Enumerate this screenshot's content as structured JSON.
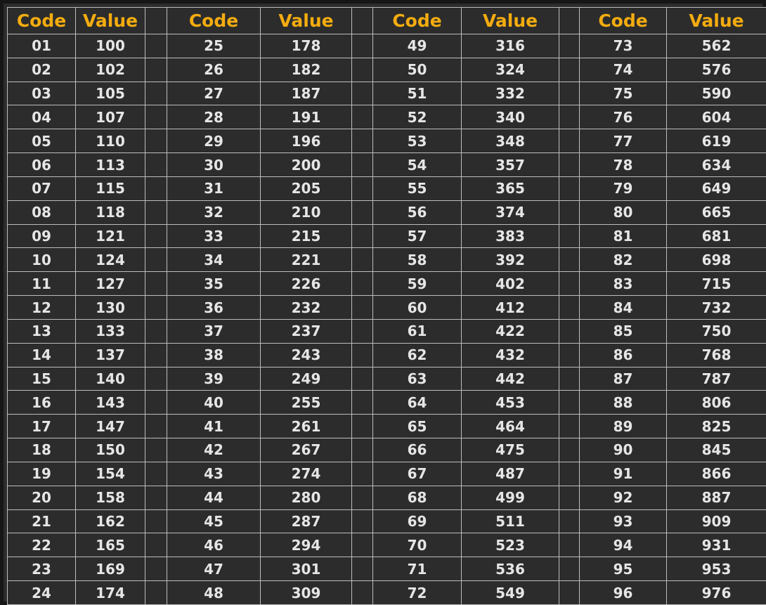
{
  "header": {
    "code": "Code",
    "value": "Value"
  },
  "accent_color": "#f3ac10",
  "rows": [
    [
      [
        "01",
        "100"
      ],
      [
        "25",
        "178"
      ],
      [
        "49",
        "316"
      ],
      [
        "73",
        "562"
      ]
    ],
    [
      [
        "02",
        "102"
      ],
      [
        "26",
        "182"
      ],
      [
        "50",
        "324"
      ],
      [
        "74",
        "576"
      ]
    ],
    [
      [
        "03",
        "105"
      ],
      [
        "27",
        "187"
      ],
      [
        "51",
        "332"
      ],
      [
        "75",
        "590"
      ]
    ],
    [
      [
        "04",
        "107"
      ],
      [
        "28",
        "191"
      ],
      [
        "52",
        "340"
      ],
      [
        "76",
        "604"
      ]
    ],
    [
      [
        "05",
        "110"
      ],
      [
        "29",
        "196"
      ],
      [
        "53",
        "348"
      ],
      [
        "77",
        "619"
      ]
    ],
    [
      [
        "06",
        "113"
      ],
      [
        "30",
        "200"
      ],
      [
        "54",
        "357"
      ],
      [
        "78",
        "634"
      ]
    ],
    [
      [
        "07",
        "115"
      ],
      [
        "31",
        "205"
      ],
      [
        "55",
        "365"
      ],
      [
        "79",
        "649"
      ]
    ],
    [
      [
        "08",
        "118"
      ],
      [
        "32",
        "210"
      ],
      [
        "56",
        "374"
      ],
      [
        "80",
        "665"
      ]
    ],
    [
      [
        "09",
        "121"
      ],
      [
        "33",
        "215"
      ],
      [
        "57",
        "383"
      ],
      [
        "81",
        "681"
      ]
    ],
    [
      [
        "10",
        "124"
      ],
      [
        "34",
        "221"
      ],
      [
        "58",
        "392"
      ],
      [
        "82",
        "698"
      ]
    ],
    [
      [
        "11",
        "127"
      ],
      [
        "35",
        "226"
      ],
      [
        "59",
        "402"
      ],
      [
        "83",
        "715"
      ]
    ],
    [
      [
        "12",
        "130"
      ],
      [
        "36",
        "232"
      ],
      [
        "60",
        "412"
      ],
      [
        "84",
        "732"
      ]
    ],
    [
      [
        "13",
        "133"
      ],
      [
        "37",
        "237"
      ],
      [
        "61",
        "422"
      ],
      [
        "85",
        "750"
      ]
    ],
    [
      [
        "14",
        "137"
      ],
      [
        "38",
        "243"
      ],
      [
        "62",
        "432"
      ],
      [
        "86",
        "768"
      ]
    ],
    [
      [
        "15",
        "140"
      ],
      [
        "39",
        "249"
      ],
      [
        "63",
        "442"
      ],
      [
        "87",
        "787"
      ]
    ],
    [
      [
        "16",
        "143"
      ],
      [
        "40",
        "255"
      ],
      [
        "64",
        "453"
      ],
      [
        "88",
        "806"
      ]
    ],
    [
      [
        "17",
        "147"
      ],
      [
        "41",
        "261"
      ],
      [
        "65",
        "464"
      ],
      [
        "89",
        "825"
      ]
    ],
    [
      [
        "18",
        "150"
      ],
      [
        "42",
        "267"
      ],
      [
        "66",
        "475"
      ],
      [
        "90",
        "845"
      ]
    ],
    [
      [
        "19",
        "154"
      ],
      [
        "43",
        "274"
      ],
      [
        "67",
        "487"
      ],
      [
        "91",
        "866"
      ]
    ],
    [
      [
        "20",
        "158"
      ],
      [
        "44",
        "280"
      ],
      [
        "68",
        "499"
      ],
      [
        "92",
        "887"
      ]
    ],
    [
      [
        "21",
        "162"
      ],
      [
        "45",
        "287"
      ],
      [
        "69",
        "511"
      ],
      [
        "93",
        "909"
      ]
    ],
    [
      [
        "22",
        "165"
      ],
      [
        "46",
        "294"
      ],
      [
        "70",
        "523"
      ],
      [
        "94",
        "931"
      ]
    ],
    [
      [
        "23",
        "169"
      ],
      [
        "47",
        "301"
      ],
      [
        "71",
        "536"
      ],
      [
        "95",
        "953"
      ]
    ],
    [
      [
        "24",
        "174"
      ],
      [
        "48",
        "309"
      ],
      [
        "72",
        "549"
      ],
      [
        "96",
        "976"
      ]
    ]
  ]
}
